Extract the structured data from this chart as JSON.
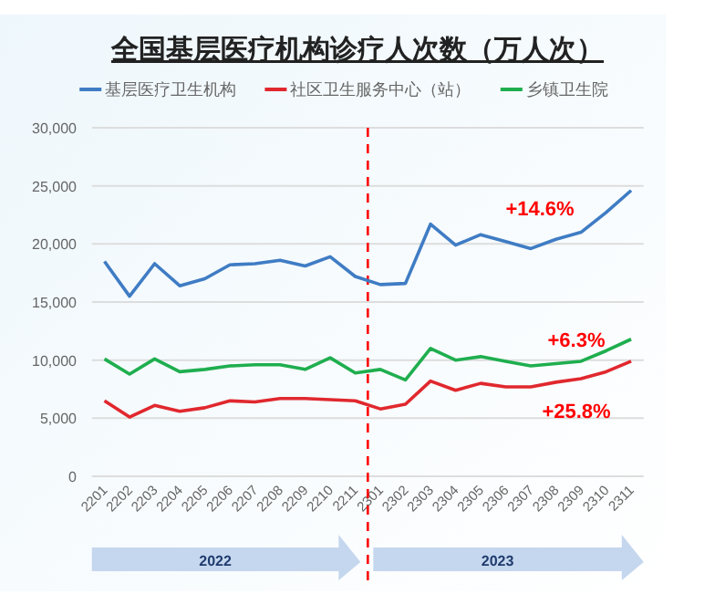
{
  "chart_data": {
    "type": "line",
    "title": "全国基层医疗机构诊疗人次数（万人次）",
    "categories": [
      "2201",
      "2202",
      "2203",
      "2204",
      "2205",
      "2206",
      "2207",
      "2208",
      "2209",
      "2210",
      "2211",
      "2301",
      "2302",
      "2303",
      "2304",
      "2305",
      "2306",
      "2307",
      "2308",
      "2309",
      "2310",
      "2311"
    ],
    "series": [
      {
        "name": "基层医疗卫生机构",
        "color": "#3f7cc4",
        "values": [
          18500,
          15500,
          18300,
          16400,
          17000,
          18200,
          18300,
          18600,
          18100,
          18900,
          17200,
          16500,
          16600,
          21700,
          19900,
          20800,
          20200,
          19600,
          20400,
          21000,
          22700,
          24600
        ]
      },
      {
        "name": "社区卫生服务中心（站）",
        "color": "#e0282e",
        "values": [
          6500,
          5100,
          6100,
          5600,
          5900,
          6500,
          6400,
          6700,
          6700,
          6600,
          6500,
          5800,
          6200,
          8200,
          7400,
          8000,
          7700,
          7700,
          8100,
          8400,
          9000,
          9900
        ]
      },
      {
        "name": "乡镇卫生院",
        "color": "#1fae4f",
        "values": [
          10100,
          8800,
          10100,
          9000,
          9200,
          9500,
          9600,
          9600,
          9200,
          10200,
          8900,
          9200,
          8300,
          11000,
          10000,
          10300,
          9900,
          9500,
          9700,
          9900,
          10800,
          11800
        ]
      }
    ],
    "ylim": [
      0,
      30000
    ],
    "yticks": [
      0,
      {
        "value": 5000,
        "label": "5,000"
      },
      {
        "value": 10000,
        "label": "10,000"
      },
      {
        "value": 15000,
        "label": "15,000"
      },
      {
        "value": 20000,
        "label": "20,000"
      },
      {
        "value": 25000,
        "label": "25,000"
      },
      {
        "value": 30000,
        "label": "30,000"
      }
    ],
    "grid": "y",
    "legend": "top",
    "marker": "none",
    "line_style": "solid",
    "annotations": [
      "+14.6%",
      "+6.3%",
      "+25.8%",
      "2022",
      "2023"
    ]
  }
}
